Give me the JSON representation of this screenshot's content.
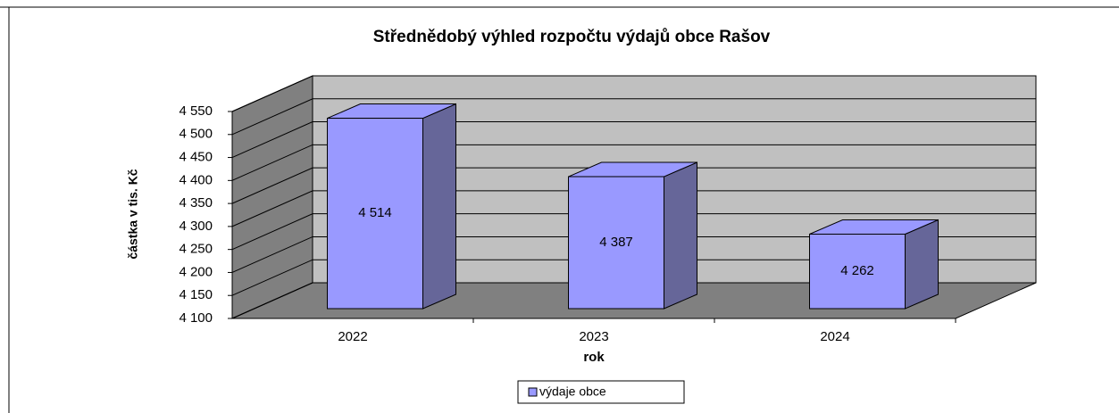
{
  "chart_data": {
    "type": "bar3d",
    "title": "Střednědobý výhled rozpočtu výdajů obce Rašov",
    "x_label": "rok",
    "y_label": "částka v tis. Kč",
    "categories": [
      "2022",
      "2023",
      "2024"
    ],
    "series": [
      {
        "name": "výdaje obce",
        "color": "#9999ff",
        "values": [
          4514,
          4387,
          4262
        ],
        "value_labels": [
          "4 514",
          "4 387",
          "4 262"
        ]
      }
    ],
    "ylim": [
      4100,
      4550
    ],
    "yticks": [
      {
        "value": 4100,
        "label": "4 100"
      },
      {
        "value": 4150,
        "label": "4 150"
      },
      {
        "value": 4200,
        "label": "4 200"
      },
      {
        "value": 4250,
        "label": "4 250"
      },
      {
        "value": 4300,
        "label": "4 300"
      },
      {
        "value": 4350,
        "label": "4 350"
      },
      {
        "value": 4400,
        "label": "4 400"
      },
      {
        "value": 4450,
        "label": "4 450"
      },
      {
        "value": 4500,
        "label": "4 500"
      },
      {
        "value": 4550,
        "label": "4 550"
      }
    ],
    "grid": true,
    "legend": "bottom"
  }
}
